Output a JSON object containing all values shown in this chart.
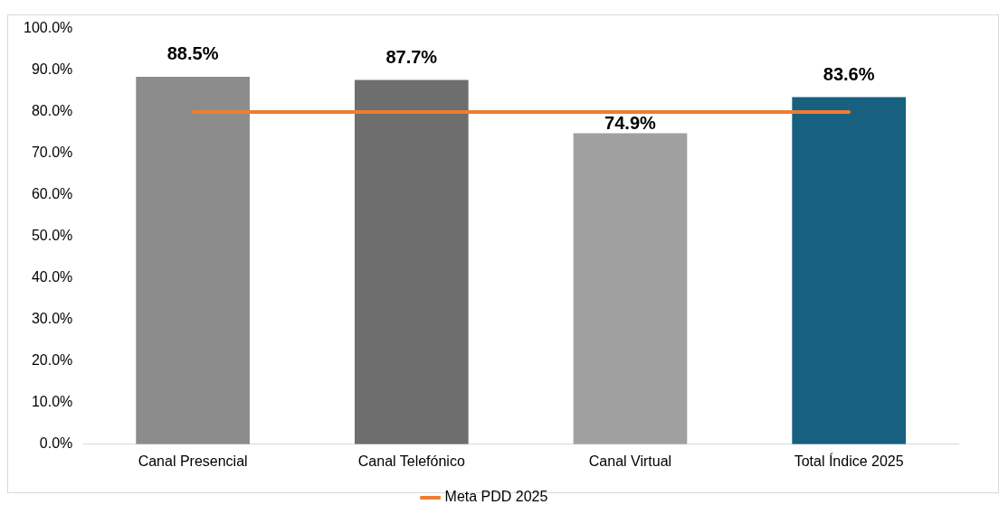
{
  "chart_data": {
    "type": "bar",
    "categories": [
      "Canal Presencial",
      "Canal Telefónico",
      "Canal Virtual",
      "Total Índice 2025"
    ],
    "series": [
      {
        "colors": [
          "#8c8c8c",
          "#6e6e6e",
          "#a0a0a0",
          "#17607f"
        ],
        "values": [
          88.5,
          87.7,
          74.9,
          83.6
        ],
        "value_labels": [
          "88.5%",
          "87.7%",
          "74.9%",
          "83.6%"
        ]
      },
      {
        "type": "line",
        "name": "Meta PDD 2025",
        "color": "#ed7d31",
        "values": [
          80,
          80,
          80,
          80
        ],
        "marker": "none"
      }
    ],
    "ylim": [
      0,
      100
    ],
    "yticks": [
      {
        "value": 0,
        "label": "0.0%"
      },
      {
        "value": 10,
        "label": "10.0%"
      },
      {
        "value": 20,
        "label": "20.0%"
      },
      {
        "value": 30,
        "label": "30.0%"
      },
      {
        "value": 40,
        "label": "40.0%"
      },
      {
        "value": 50,
        "label": "50.0%"
      },
      {
        "value": 60,
        "label": "60.0%"
      },
      {
        "value": 70,
        "label": "70.0%"
      },
      {
        "value": 80,
        "label": "80.0%"
      },
      {
        "value": 90,
        "label": "90.0%"
      },
      {
        "value": 100,
        "label": "100.0%"
      }
    ],
    "grid": false,
    "legend": "bottom"
  }
}
